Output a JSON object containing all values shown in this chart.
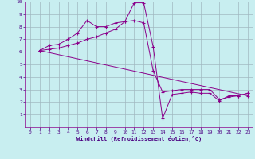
{
  "xlabel": "Windchill (Refroidissement éolien,°C)",
  "background_color": "#c8eef0",
  "grid_color": "#a0b8c0",
  "line_color": "#8b008b",
  "marker": "+",
  "xlim": [
    -0.5,
    23.5
  ],
  "ylim": [
    0,
    10
  ],
  "xticks": [
    0,
    1,
    2,
    3,
    4,
    5,
    6,
    7,
    8,
    9,
    10,
    11,
    12,
    13,
    14,
    15,
    16,
    17,
    18,
    19,
    20,
    21,
    22,
    23
  ],
  "yticks": [
    1,
    2,
    3,
    4,
    5,
    6,
    7,
    8,
    9,
    10
  ],
  "series": [
    {
      "x": [
        1,
        2,
        3,
        4,
        5,
        6,
        7,
        8,
        9,
        10,
        11,
        12,
        13,
        14,
        15,
        16,
        17,
        18,
        19,
        20,
        21,
        22,
        23
      ],
      "y": [
        6.1,
        6.5,
        6.6,
        7.0,
        7.5,
        8.5,
        8.0,
        8.0,
        8.3,
        8.4,
        9.9,
        9.9,
        6.4,
        0.7,
        2.6,
        2.7,
        2.8,
        2.7,
        2.7,
        2.1,
        2.5,
        2.5,
        2.7
      ]
    },
    {
      "x": [
        1,
        23
      ],
      "y": [
        6.1,
        2.5
      ]
    },
    {
      "x": [
        1,
        2,
        3,
        4,
        5,
        6,
        7,
        8,
        9,
        10,
        11,
        12,
        13,
        14,
        15,
        16,
        17,
        18,
        19,
        20,
        21,
        22,
        23
      ],
      "y": [
        6.1,
        6.2,
        6.3,
        6.5,
        6.7,
        7.0,
        7.2,
        7.5,
        7.8,
        8.4,
        8.5,
        8.3,
        4.5,
        2.8,
        2.9,
        3.0,
        3.0,
        3.0,
        3.0,
        2.2,
        2.4,
        2.5,
        2.7
      ]
    }
  ]
}
